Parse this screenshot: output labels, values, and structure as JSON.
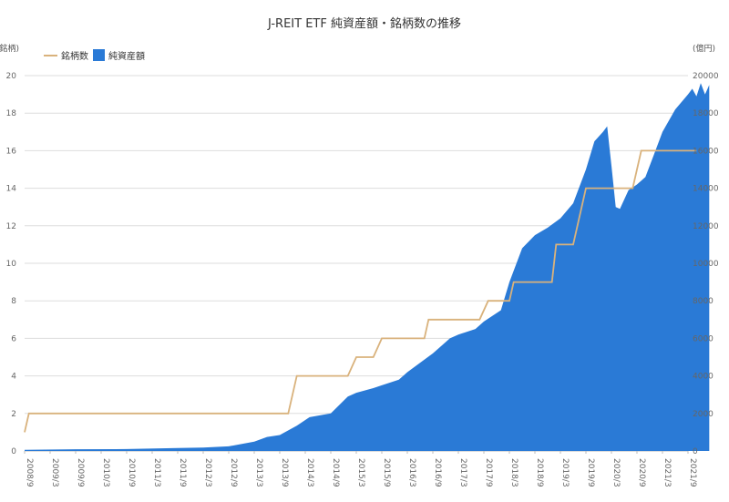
{
  "chart_data": {
    "type": "line",
    "title": "J-REIT ETF 純資産額・銘柄数の推移",
    "y_left_label": "(銘柄)",
    "y_right_label": "(億円)",
    "y_left_range": [
      0,
      20
    ],
    "y_right_range": [
      0,
      20000
    ],
    "y_left_ticks": [
      "0",
      "2",
      "4",
      "6",
      "8",
      "10",
      "12",
      "14",
      "16",
      "18",
      "20"
    ],
    "y_right_ticks": [
      "0",
      "2000",
      "4000",
      "6000",
      "8000",
      "10000",
      "12000",
      "14000",
      "16000",
      "18000",
      "20000"
    ],
    "x_ticks": [
      "2008/9",
      "2009/3",
      "2009/9",
      "2010/3",
      "2010/9",
      "2011/3",
      "2011/9",
      "2012/3",
      "2012/9",
      "2013/3",
      "2013/9",
      "2014/3",
      "2014/9",
      "2015/3",
      "2015/9",
      "2016/3",
      "2016/9",
      "2017/3",
      "2017/9",
      "2018/3",
      "2018/9",
      "2019/3",
      "2019/9",
      "2020/3",
      "2020/9",
      "2021/3",
      "2021/9"
    ],
    "grid": true,
    "legend_position": "top-left",
    "series": [
      {
        "name": "銘柄数",
        "kind": "step-line",
        "axis": "left",
        "color": "#d9b27c",
        "points": [
          [
            "2008/9",
            1
          ],
          [
            "2008/10",
            2
          ],
          [
            "2013/11",
            2
          ],
          [
            "2014/1",
            4
          ],
          [
            "2015/1",
            4
          ],
          [
            "2015/3",
            5
          ],
          [
            "2015/7",
            5
          ],
          [
            "2015/9",
            6
          ],
          [
            "2016/7",
            6
          ],
          [
            "2016/8",
            7
          ],
          [
            "2017/8",
            7
          ],
          [
            "2017/10",
            8
          ],
          [
            "2018/3",
            8
          ],
          [
            "2018/4",
            9
          ],
          [
            "2019/1",
            9
          ],
          [
            "2019/2",
            11
          ],
          [
            "2019/6",
            11
          ],
          [
            "2019/9",
            14
          ],
          [
            "2020/8",
            14
          ],
          [
            "2020/10",
            16
          ],
          [
            "2021/11",
            16
          ]
        ]
      },
      {
        "name": "純資産額",
        "kind": "area",
        "axis": "right",
        "color": "#2a7ad6",
        "points": [
          [
            "2008/9",
            60
          ],
          [
            "2009/9",
            90
          ],
          [
            "2010/9",
            100
          ],
          [
            "2011/9",
            160
          ],
          [
            "2012/3",
            180
          ],
          [
            "2012/9",
            250
          ],
          [
            "2013/3",
            500
          ],
          [
            "2013/6",
            750
          ],
          [
            "2013/9",
            850
          ],
          [
            "2014/1",
            1350
          ],
          [
            "2014/4",
            1800
          ],
          [
            "2014/9",
            2000
          ],
          [
            "2015/1",
            2900
          ],
          [
            "2015/3",
            3100
          ],
          [
            "2015/7",
            3350
          ],
          [
            "2015/9",
            3500
          ],
          [
            "2016/1",
            3800
          ],
          [
            "2016/3",
            4200
          ],
          [
            "2016/9",
            5200
          ],
          [
            "2017/1",
            6000
          ],
          [
            "2017/3",
            6200
          ],
          [
            "2017/7",
            6500
          ],
          [
            "2017/9",
            6900
          ],
          [
            "2018/1",
            7500
          ],
          [
            "2018/3",
            9000
          ],
          [
            "2018/6",
            10800
          ],
          [
            "2018/9",
            11500
          ],
          [
            "2018/12",
            11900
          ],
          [
            "2019/3",
            12400
          ],
          [
            "2019/6",
            13200
          ],
          [
            "2019/9",
            15000
          ],
          [
            "2019/11",
            16500
          ],
          [
            "2020/1",
            17000
          ],
          [
            "2020/2",
            17300
          ],
          [
            "2020/3",
            15200
          ],
          [
            "2020/4",
            13000
          ],
          [
            "2020/5",
            12900
          ],
          [
            "2020/7",
            13900
          ],
          [
            "2020/9",
            14200
          ],
          [
            "2020/11",
            14600
          ],
          [
            "2021/1",
            15800
          ],
          [
            "2021/3",
            17000
          ],
          [
            "2021/6",
            18200
          ],
          [
            "2021/9",
            19000
          ],
          [
            "2021/10",
            19300
          ],
          [
            "2021/11",
            18900
          ],
          [
            "2021/12",
            19600
          ],
          [
            "2022/1",
            19000
          ],
          [
            "2022/2",
            19500
          ]
        ]
      }
    ]
  }
}
